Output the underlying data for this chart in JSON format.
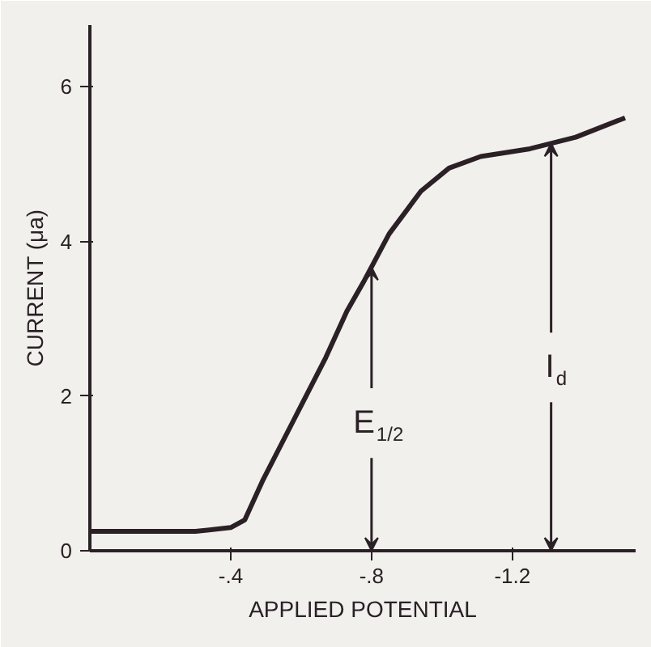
{
  "chart_data": {
    "type": "line",
    "xlabel": "APPLIED POTENTIAL",
    "ylabel": "CURRENT (μa)",
    "x": [
      0,
      -0.1,
      -0.2,
      -0.3,
      -0.4,
      -0.44,
      -0.49,
      -0.58,
      -0.67,
      -0.73,
      -0.78,
      -0.85,
      -0.94,
      -1.02,
      -1.11,
      -1.25,
      -1.38,
      -1.52
    ],
    "series": [
      {
        "color": "#2a2026",
        "values": [
          0.25,
          0.25,
          0.25,
          0.25,
          0.3,
          0.4,
          0.9,
          1.7,
          2.5,
          3.1,
          3.5,
          4.1,
          4.65,
          4.95,
          5.1,
          5.2,
          5.35,
          5.6
        ]
      }
    ],
    "xlim": [
      0,
      -1.55
    ],
    "ylim": [
      0,
      6.8
    ],
    "xticks": [
      {
        "value": -0.4,
        "label": "-.4"
      },
      {
        "value": -0.8,
        "label": "-.8"
      },
      {
        "value": -1.2,
        "label": "-1.2"
      }
    ],
    "yticks": [
      0,
      2,
      4,
      6
    ],
    "annotations": [
      {
        "text": "E$_{1/2}$",
        "x": -0.8,
        "y": 3.67
      },
      {
        "text": "I$_{d}$",
        "x": -1.31,
        "y": 5.27
      }
    ],
    "grid": false,
    "marker": "none",
    "line_style": "solid"
  }
}
